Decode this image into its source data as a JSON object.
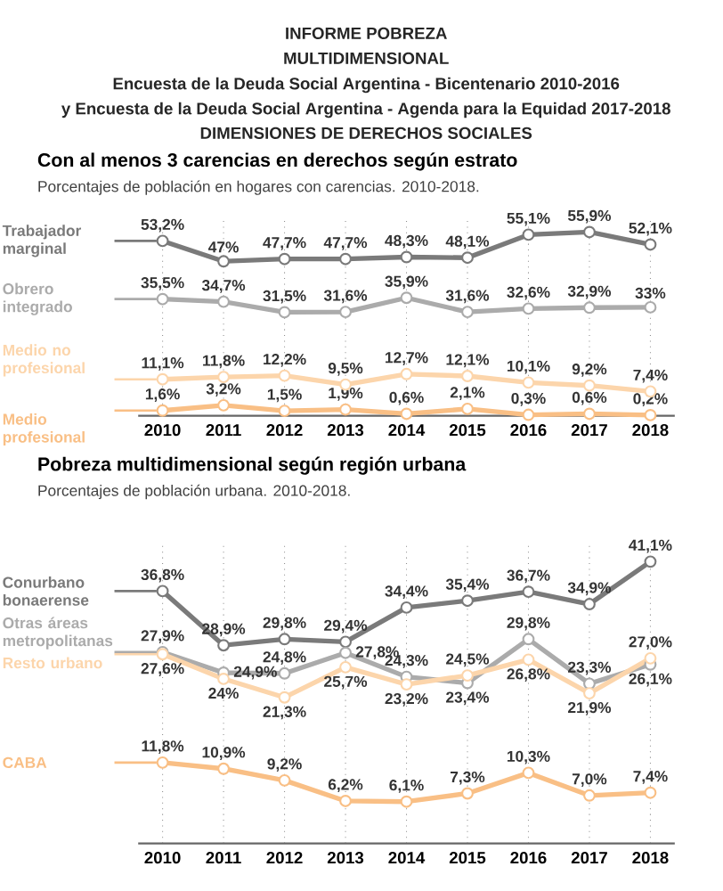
{
  "chart_data": [
    {
      "type": "line",
      "title": "Con al menos 3 carencias en derechos según estrato",
      "subtitle": "Porcentajes de población en hogares con carencias. 2010-2018.",
      "annotations": [
        "INFORME POBREZA",
        "MULTIDIMENSIONAL",
        "Encuesta de la Deuda Social Argentina - Bicentenario 2010-2016",
        "y Encuesta de la Deuda Social Argentina - Agenda para la Equidad 2017-2018",
        "DIMENSIONES DE DERECHOS SOCIALES"
      ],
      "categories": [
        "2010",
        "2011",
        "2012",
        "2013",
        "2014",
        "2015",
        "2016",
        "2017",
        "2018"
      ],
      "ylim": [
        0,
        60
      ],
      "tick_labels": "x",
      "grid": "x",
      "marker": "circle",
      "legend": "left",
      "series": [
        {
          "name": "Trabajador marginal",
          "color": "#7a7a7a",
          "values": [
            53.2,
            47,
            47.7,
            47.7,
            48.3,
            48.1,
            55.1,
            55.9,
            52.1
          ],
          "value_labels": [
            "53,2%",
            "47%",
            "47,7%",
            "47,7%",
            "48,3%",
            "48,1%",
            "55,1%",
            "55,9%",
            "52,1%"
          ]
        },
        {
          "name": "Obrero integrado",
          "color": "#ababab",
          "values": [
            35.5,
            34.7,
            31.5,
            31.6,
            35.9,
            31.6,
            32.6,
            32.9,
            33
          ],
          "value_labels": [
            "35,5%",
            "34,7%",
            "31,5%",
            "31,6%",
            "35,9%",
            "31,6%",
            "32,6%",
            "32,9%",
            "33%"
          ]
        },
        {
          "name": "Medio no profesional",
          "color": "#fcd5ab",
          "values": [
            11.1,
            11.8,
            12.2,
            9.5,
            12.7,
            12.1,
            10.1,
            9.2,
            7.4
          ],
          "value_labels": [
            "11,1%",
            "11,8%",
            "12,2%",
            "9,5%",
            "12,7%",
            "12,1%",
            "10,1%",
            "9,2%",
            "7,4%"
          ]
        },
        {
          "name": "Medio profesional",
          "color": "#f9bf85",
          "values": [
            1.6,
            3.2,
            1.5,
            1.9,
            0.6,
            2.1,
            0.3,
            0.6,
            0.2
          ],
          "value_labels": [
            "1,6%",
            "3,2%",
            "1,5%",
            "1,9%",
            "0,6%",
            "2,1%",
            "0,3%",
            "0,6%",
            "0,2%"
          ]
        }
      ]
    },
    {
      "type": "line",
      "title": "Pobreza multidimensional según región urbana",
      "subtitle": "Porcentajes de población urbana. 2010-2018.",
      "categories": [
        "2010",
        "2011",
        "2012",
        "2013",
        "2014",
        "2015",
        "2016",
        "2017",
        "2018"
      ],
      "ylim": [
        0,
        44
      ],
      "tick_labels": "x",
      "grid": "x",
      "marker": "circle",
      "legend": "left",
      "series": [
        {
          "name": "Conurbano bonaerense",
          "color": "#7a7a7a",
          "values": [
            36.8,
            28.9,
            29.8,
            29.4,
            34.4,
            35.4,
            36.7,
            34.9,
            41.1
          ],
          "value_labels": [
            "36,8%",
            "28,9%",
            "29,8%",
            "29,4%",
            "34,4%",
            "35,4%",
            "36,7%",
            "34,9%",
            "41,1%"
          ]
        },
        {
          "name": "Otras áreas metropolitanas",
          "color": "#ababab",
          "values": [
            27.9,
            24.9,
            24.8,
            27.8,
            24.3,
            23.4,
            29.8,
            23.3,
            26.1
          ],
          "value_labels": [
            "27,9%",
            "24,9%",
            "24,8%",
            "27,8%",
            "24,3%",
            "23,4%",
            "29,8%",
            "23,3%",
            "26,1%"
          ]
        },
        {
          "name": "Resto urbano",
          "color": "#fcd5ab",
          "values": [
            27.6,
            24,
            21.3,
            25.7,
            23.2,
            24.5,
            26.8,
            21.9,
            27.0
          ],
          "value_labels": [
            "27,6%",
            "24%",
            "21,3%",
            "25,7%",
            "23,2%",
            "24,5%",
            "26,8%",
            "21,9%",
            "27,0%"
          ]
        },
        {
          "name": "CABA",
          "color": "#f9bf85",
          "values": [
            11.8,
            10.9,
            9.2,
            6.2,
            6.1,
            7.3,
            10.3,
            7.0,
            7.4
          ],
          "value_labels": [
            "11,8%",
            "10,9%",
            "9,2%",
            "6,2%",
            "6,1%",
            "7,3%",
            "10,3%",
            "7,0%",
            "7,4%"
          ]
        }
      ]
    }
  ]
}
